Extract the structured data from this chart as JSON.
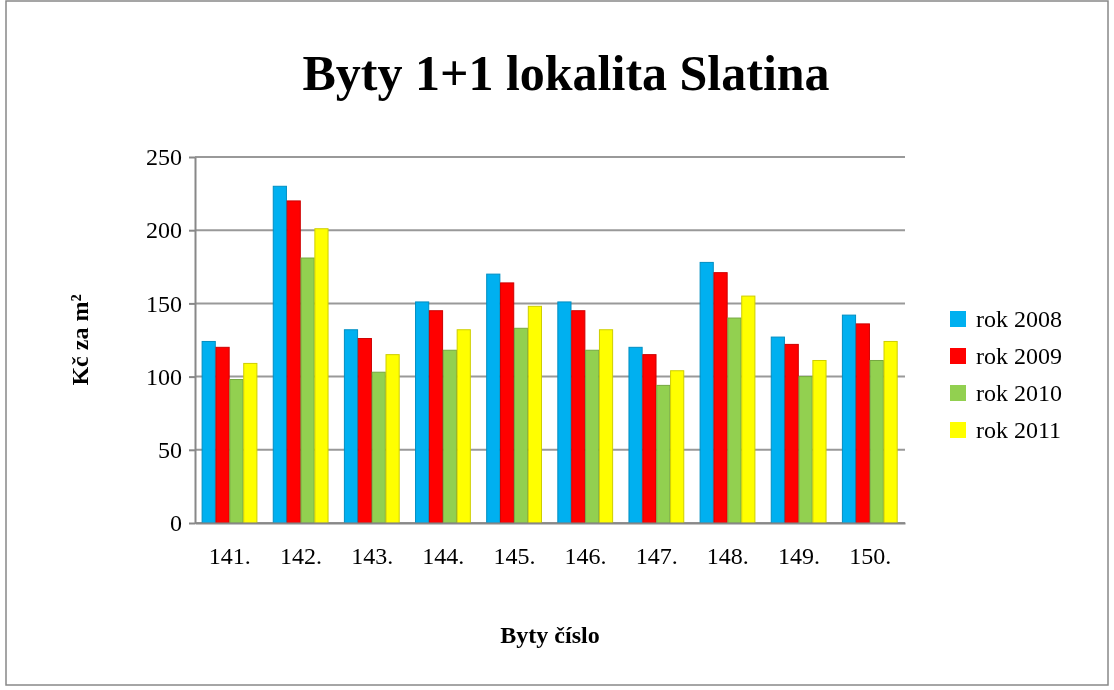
{
  "chart_data": {
    "type": "bar",
    "title": "Byty 1+1 lokalita Slatina",
    "xlabel": "Byty číslo",
    "ylabel": "Kč za m²",
    "categories": [
      "141.",
      "142.",
      "143.",
      "144.",
      "145.",
      "146.",
      "147.",
      "148.",
      "149.",
      "150."
    ],
    "series": [
      {
        "name": "rok 2008",
        "color": "#00b0f0",
        "values": [
          124,
          230,
          132,
          151,
          170,
          151,
          120,
          178,
          127,
          142
        ]
      },
      {
        "name": "rok 2009",
        "color": "#ff0000",
        "values": [
          120,
          220,
          126,
          145,
          164,
          145,
          115,
          171,
          122,
          136
        ]
      },
      {
        "name": "rok 2010",
        "color": "#92d050",
        "values": [
          98,
          181,
          103,
          118,
          133,
          118,
          94,
          140,
          100,
          111
        ]
      },
      {
        "name": "rok 2011",
        "color": "#ffff00",
        "values": [
          109,
          201,
          115,
          132,
          148,
          132,
          104,
          155,
          111,
          124
        ]
      }
    ],
    "ylim": [
      0,
      250
    ],
    "yticks": [
      0,
      50,
      100,
      150,
      200,
      250
    ],
    "grid": "y",
    "legend": "right"
  }
}
